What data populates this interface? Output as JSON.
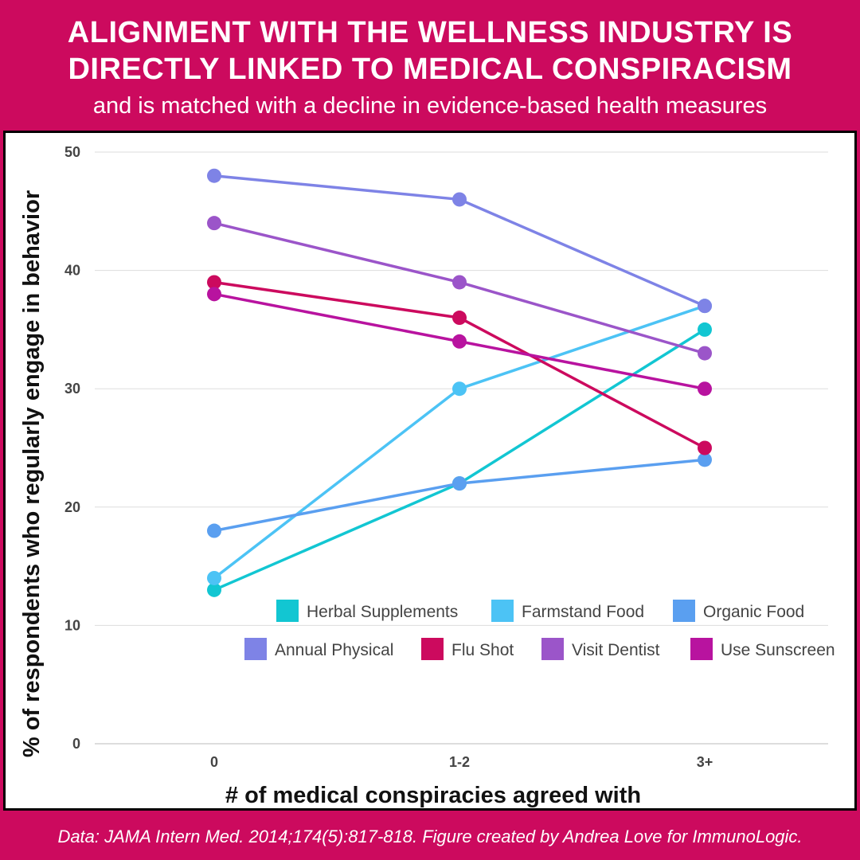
{
  "header": {
    "title_line1": "ALIGNMENT WITH THE WELLNESS INDUSTRY IS",
    "title_line2": "DIRECTLY LINKED TO MEDICAL CONSPIRACISM",
    "subtitle": "and is matched with a decline in evidence-based health measures"
  },
  "footer": {
    "source": "Data: JAMA Intern Med. 2014;174(5):817-818. Figure created by Andrea Love for ImmunoLogic."
  },
  "colors": {
    "background": "#cc0a5e",
    "panel": "#ffffff",
    "grid": "#dddddd"
  },
  "chart_data": {
    "type": "line",
    "categories": [
      "0",
      "1-2",
      "3+"
    ],
    "xlabel": "# of medical conspiracies agreed with",
    "ylabel": "% of respondents who regularly engage in behavior",
    "ylim": [
      0,
      50
    ],
    "yticks": [
      0,
      10,
      20,
      30,
      40,
      50
    ],
    "grid": true,
    "legend_position": "lower-right",
    "series": [
      {
        "name": "Herbal Supplements",
        "color": "#12c6d2",
        "values": [
          13,
          22,
          35
        ]
      },
      {
        "name": "Farmstand Food",
        "color": "#4cc3f5",
        "values": [
          14,
          30,
          37
        ]
      },
      {
        "name": "Organic Food",
        "color": "#5a9ff0",
        "values": [
          18,
          22,
          24
        ]
      },
      {
        "name": "Annual Physical",
        "color": "#7e83e6",
        "values": [
          48,
          46,
          37
        ]
      },
      {
        "name": "Flu Shot",
        "color": "#cc0a5e",
        "values": [
          39,
          36,
          25
        ]
      },
      {
        "name": "Visit Dentist",
        "color": "#9b55c9",
        "values": [
          44,
          39,
          33
        ]
      },
      {
        "name": "Use Sunscreen",
        "color": "#b8139f",
        "values": [
          38,
          34,
          30
        ]
      }
    ]
  }
}
